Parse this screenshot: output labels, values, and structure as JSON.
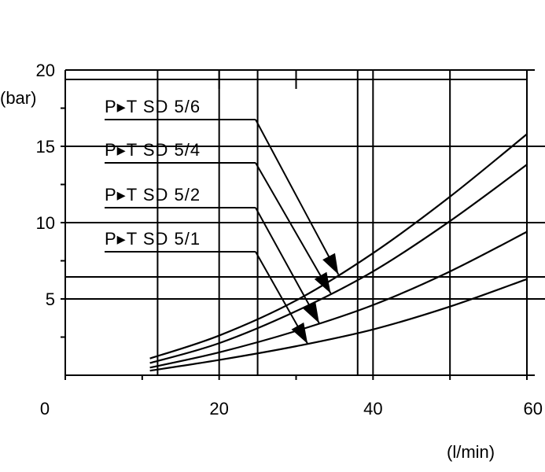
{
  "chart_data": {
    "type": "line",
    "xlabel": "(l/min)",
    "ylabel": "(bar)",
    "xlim": [
      0,
      60
    ],
    "ylim": [
      0,
      20
    ],
    "x_ticks": [
      "0",
      "20",
      "40",
      "60"
    ],
    "y_ticks": [
      "5",
      "10",
      "15",
      "20"
    ],
    "grid": true,
    "series": [
      {
        "name": "P▸T SD 5/6",
        "x": [
          11,
          20,
          30,
          40,
          50,
          60
        ],
        "y": [
          1.1,
          2.6,
          4.9,
          8.0,
          11.7,
          15.8
        ]
      },
      {
        "name": "P▸T SD 5/4",
        "x": [
          11,
          20,
          30,
          40,
          50,
          60
        ],
        "y": [
          0.8,
          2.1,
          4.2,
          6.8,
          10.1,
          13.8
        ]
      },
      {
        "name": "P▸T SD 5/2",
        "x": [
          11,
          20,
          30,
          40,
          50,
          60
        ],
        "y": [
          0.5,
          1.5,
          2.9,
          4.6,
          6.8,
          9.4
        ]
      },
      {
        "name": "P▸T SD 5/1",
        "x": [
          11,
          20,
          30,
          40,
          50,
          60
        ],
        "y": [
          0.3,
          1.0,
          1.9,
          3.0,
          4.5,
          6.3
        ]
      }
    ]
  }
}
